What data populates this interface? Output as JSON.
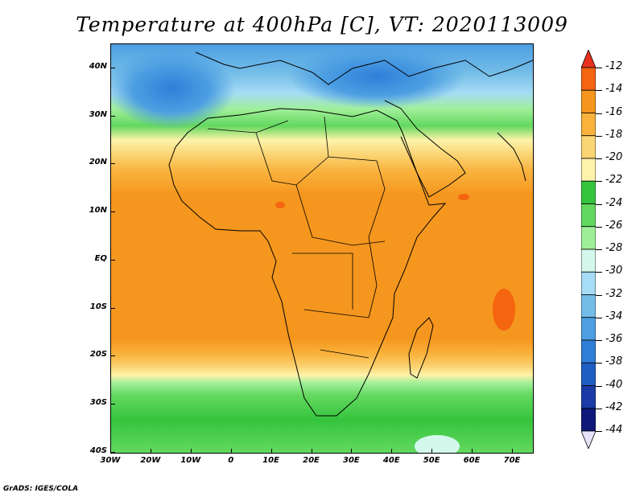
{
  "title": "Temperature at 400hPa [C], VT: 2020113009",
  "credit": "GrADS: IGES/COLA",
  "map": {
    "lat_labels": [
      "40N",
      "30N",
      "20N",
      "10N",
      "EQ",
      "10S",
      "20S",
      "30S",
      "40S"
    ],
    "lon_labels": [
      "30W",
      "20W",
      "10W",
      "0",
      "10E",
      "20E",
      "30E",
      "40E",
      "50E",
      "60E",
      "70E"
    ]
  },
  "colorbar": {
    "labels": [
      "-12",
      "-14",
      "-16",
      "-18",
      "-20",
      "-22",
      "-24",
      "-26",
      "-28",
      "-30",
      "-32",
      "-34",
      "-36",
      "-38",
      "-40",
      "-42",
      "-44"
    ],
    "colors": [
      "#e8321e",
      "#f5640f",
      "#f5961e",
      "#f9b33d",
      "#fbd474",
      "#fef3aa",
      "#35c43e",
      "#63d85f",
      "#9fef98",
      "#d4f9ec",
      "#a6dcf5",
      "#74bde8",
      "#4d9fe2",
      "#2f7fd9",
      "#1e5ec4",
      "#1b3ca6",
      "#0f1878",
      "#e6e2f8"
    ]
  },
  "chart_data": {
    "type": "heatmap",
    "title": "Temperature at 400hPa [C], VT: 2020113009",
    "variable": "Temperature",
    "level": "400hPa",
    "units": "C",
    "valid_time": "2020113009",
    "lon_range": [
      -30,
      75
    ],
    "lat_range": [
      -40,
      45
    ],
    "color_levels": [
      -44,
      -42,
      -40,
      -38,
      -36,
      -34,
      -32,
      -30,
      -28,
      -26,
      -24,
      -22,
      -20,
      -18,
      -16,
      -14,
      -12
    ],
    "features": [
      {
        "region": "Mediterranean / North Africa",
        "approx_value_C": -34
      },
      {
        "region": "Tropics (20N–20S)",
        "approx_value_C": -16
      },
      {
        "region": "Indian Ocean east of Madagascar",
        "approx_value_C": -13
      },
      {
        "region": "Southern Ocean south of 30S",
        "approx_value_C": -25
      }
    ]
  }
}
